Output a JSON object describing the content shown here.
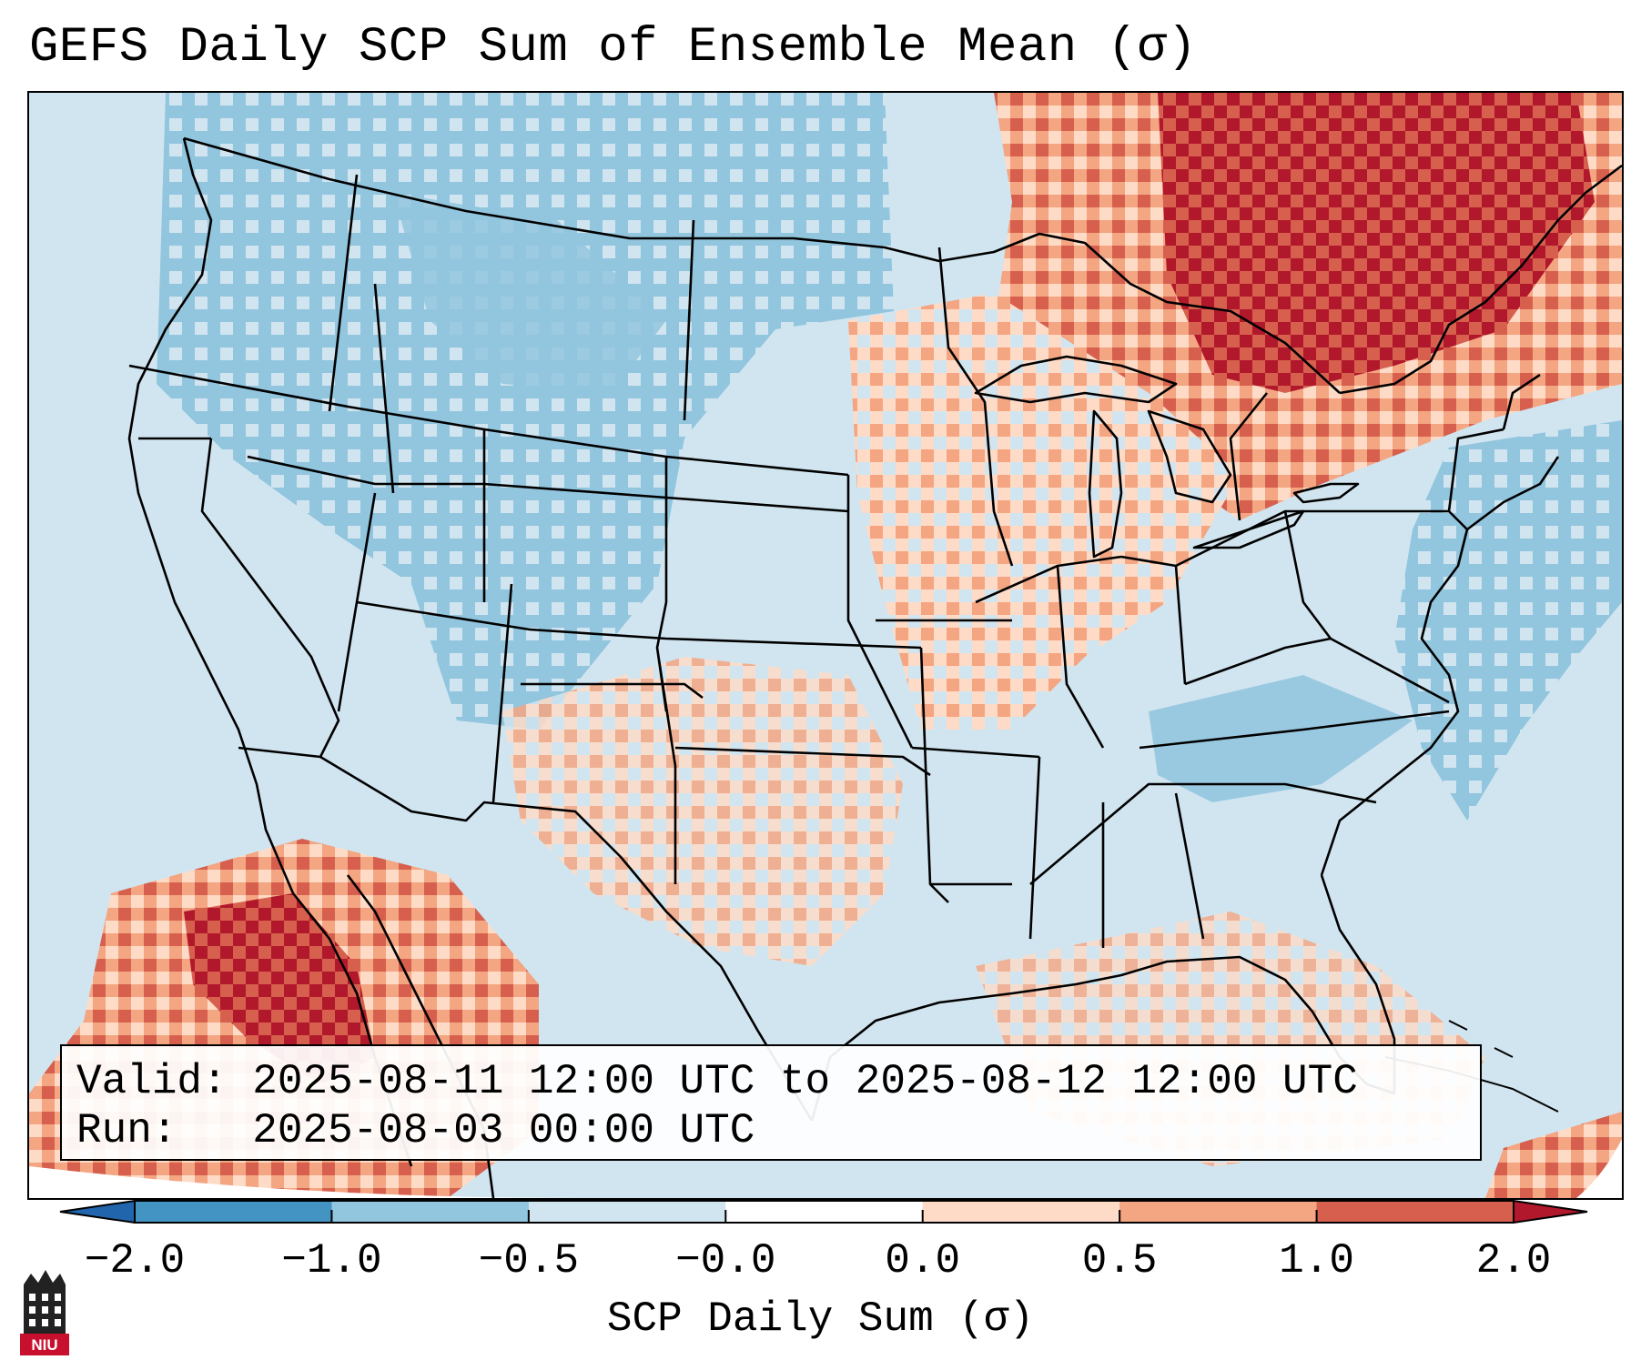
{
  "title": "GEFS Daily SCP Sum of Ensemble Mean (σ)",
  "info": {
    "valid_label": "Valid:",
    "valid_value": "2025-08-11 12:00 UTC to 2025-08-12 12:00 UTC",
    "run_label": "Run:",
    "run_value": "2025-08-03 00:00 UTC"
  },
  "colorbar": {
    "label": "SCP Daily Sum (σ)",
    "ticks": [
      "−2.0",
      "−1.0",
      "−0.5",
      "−0.0",
      "0.0",
      "0.5",
      "1.0",
      "2.0"
    ],
    "colors": [
      "#4393c3",
      "#92c5de",
      "#d1e5f0",
      "#ffffff",
      "#fddbc7",
      "#f4a582",
      "#d6604d",
      "#b2182b"
    ],
    "extend": "both"
  },
  "map": {
    "region": "Contiguous United States",
    "background_color": "#d1e5f0",
    "anomaly_regions": [
      {
        "name": "northeast-canada-strong-positive",
        "level": 2.0
      },
      {
        "name": "great-lakes-positive",
        "level": 1.0
      },
      {
        "name": "midwest-weak-positive",
        "level": 0.5
      },
      {
        "name": "mexico-southwest-positive",
        "level": 2.0
      },
      {
        "name": "northwest-negative",
        "level": -1.0
      },
      {
        "name": "atlantic-negative",
        "level": -1.0
      },
      {
        "name": "southern-plains-weak-positive",
        "level": 0.5
      }
    ]
  },
  "logo": {
    "text": "NIU"
  }
}
